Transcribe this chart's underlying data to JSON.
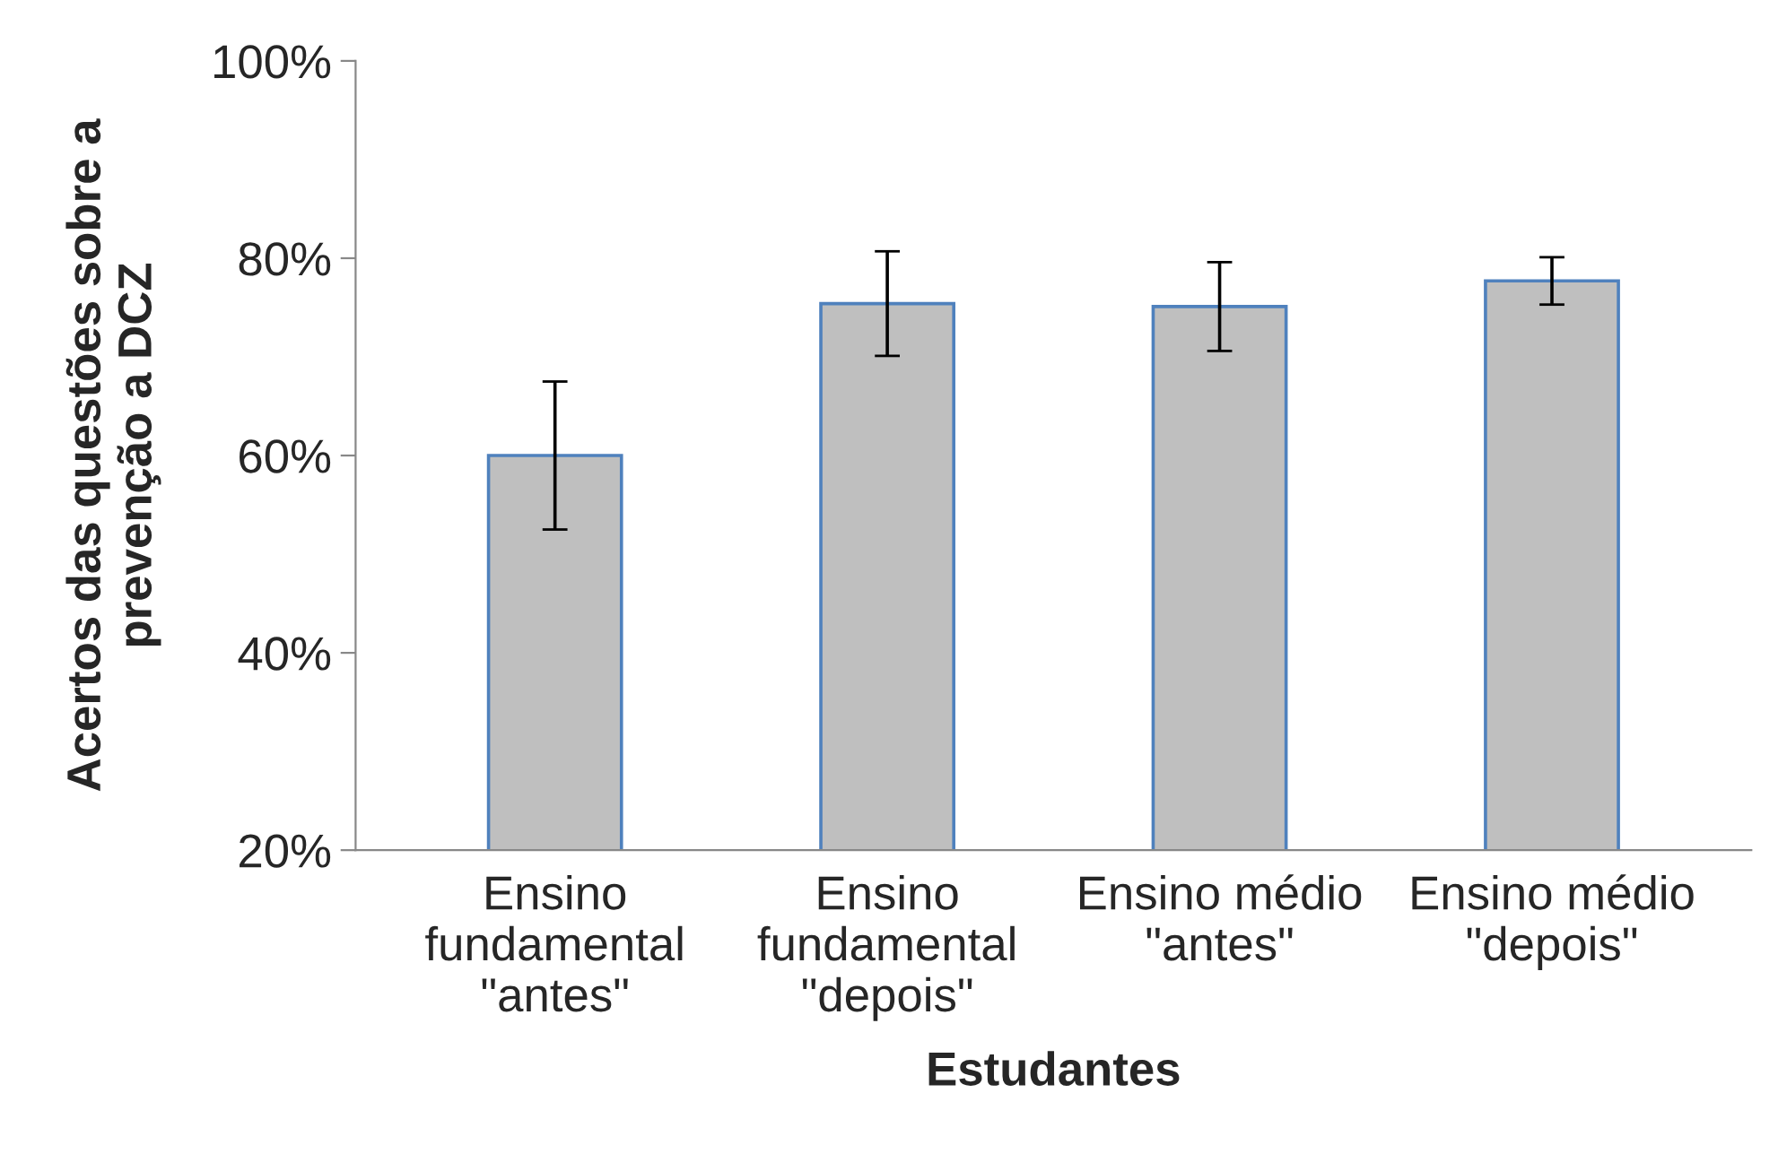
{
  "chart_data": {
    "type": "bar",
    "xlabel": "Estudantes",
    "ylabel": "Acertos das questões sobre a prevenção a DCZ",
    "categories": [
      "Ensino\nfundamental\n\"antes\"",
      "Ensino\nfundamental\n\"depois\"",
      "Ensino médio\n\"antes\"",
      "Ensino médio\n\"depois\""
    ],
    "values": [
      60,
      75.4,
      75.1,
      77.7
    ],
    "errors": [
      7.5,
      5.3,
      4.5,
      2.4
    ],
    "color": "#bfbfbf",
    "ylim": [
      20,
      100
    ],
    "yticks": [
      {
        "value": 20,
        "label": "20%"
      },
      {
        "value": 40,
        "label": "40%"
      },
      {
        "value": 60,
        "label": "60%"
      },
      {
        "value": 80,
        "label": "80%"
      },
      {
        "value": 100,
        "label": "100%"
      }
    ],
    "grid": false,
    "legend": false
  }
}
